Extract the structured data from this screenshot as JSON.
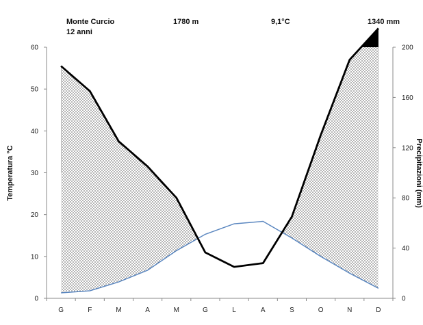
{
  "header": {
    "station": "Monte Curcio",
    "years": "12 anni",
    "altitude": "1780 m",
    "mean_temp": "9,1°C",
    "annual_precip": "1340 mm"
  },
  "chart_data": {
    "type": "line",
    "categories": [
      "G",
      "F",
      "M",
      "A",
      "M",
      "G",
      "L",
      "A",
      "S",
      "O",
      "N",
      "D"
    ],
    "series": [
      {
        "values": [
          1.3,
          1.8,
          3.9,
          6.7,
          11.4,
          15.3,
          17.8,
          18.4,
          14.4,
          10.0,
          6.0,
          2.4
        ],
        "color": "#5b87c0",
        "axis": "left"
      },
      {
        "values": [
          108.5,
          106.5,
          102.5,
          100.5,
          80,
          36.5,
          25,
          28,
          65,
          103,
          109,
          111.5
        ],
        "color": "#000000",
        "axis": "right"
      }
    ],
    "ylabel": "Temperatura °C",
    "y2label": "Precipitazioni (mm)",
    "ylim": [
      0,
      60
    ],
    "y2lim": [
      0,
      200
    ],
    "yticks": [
      "0",
      "10",
      "20",
      "30",
      "40",
      "50",
      "60"
    ],
    "y2ticks": [
      "0",
      "20",
      "40",
      "60",
      "80",
      "100",
      "120",
      "140",
      "160",
      "180",
      "200"
    ],
    "y2_display_scale": {
      "break_value": 100,
      "above_break_ratio": 10
    },
    "fills": {
      "humid_above_100mm": "#000000",
      "arid_period": "dotted"
    },
    "grid": false,
    "legend": "none"
  }
}
